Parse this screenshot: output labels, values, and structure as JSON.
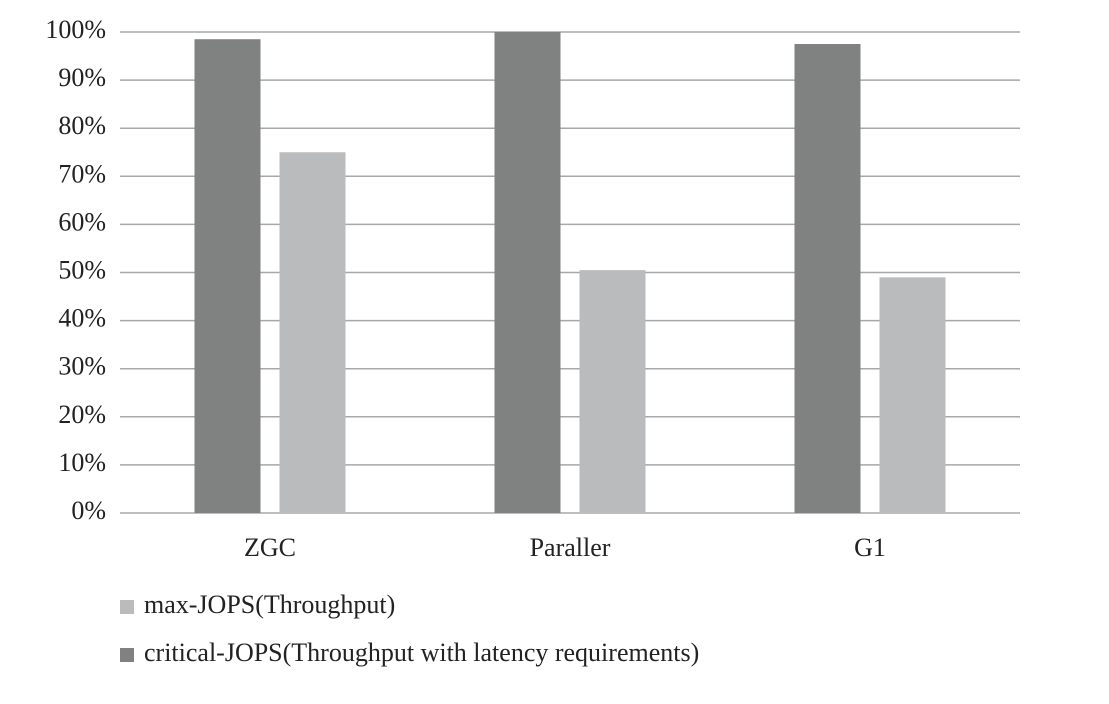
{
  "chart_data": {
    "type": "bar",
    "categories": [
      "ZGC",
      "Paraller",
      "G1"
    ],
    "series": [
      {
        "name": "max-JOPS(Throughput)",
        "color": "#b9bbbd",
        "values": [
          75,
          50.5,
          49
        ]
      },
      {
        "name": "critical-JOPS(Throughput with latency requirements)",
        "color": "#7f8280",
        "values": [
          98.5,
          100,
          97.5
        ]
      }
    ],
    "ylim": [
      0,
      100
    ],
    "yticks": [
      {
        "value": 0,
        "label": "0%"
      },
      {
        "value": 10,
        "label": "10%"
      },
      {
        "value": 20,
        "label": "20%"
      },
      {
        "value": 30,
        "label": "30%"
      },
      {
        "value": 40,
        "label": "40%"
      },
      {
        "value": 50,
        "label": "50%"
      },
      {
        "value": 60,
        "label": "60%"
      },
      {
        "value": 70,
        "label": "70%"
      },
      {
        "value": 80,
        "label": "80%"
      },
      {
        "value": 90,
        "label": "90%"
      },
      {
        "value": 100,
        "label": "100%"
      }
    ],
    "grid": true
  }
}
